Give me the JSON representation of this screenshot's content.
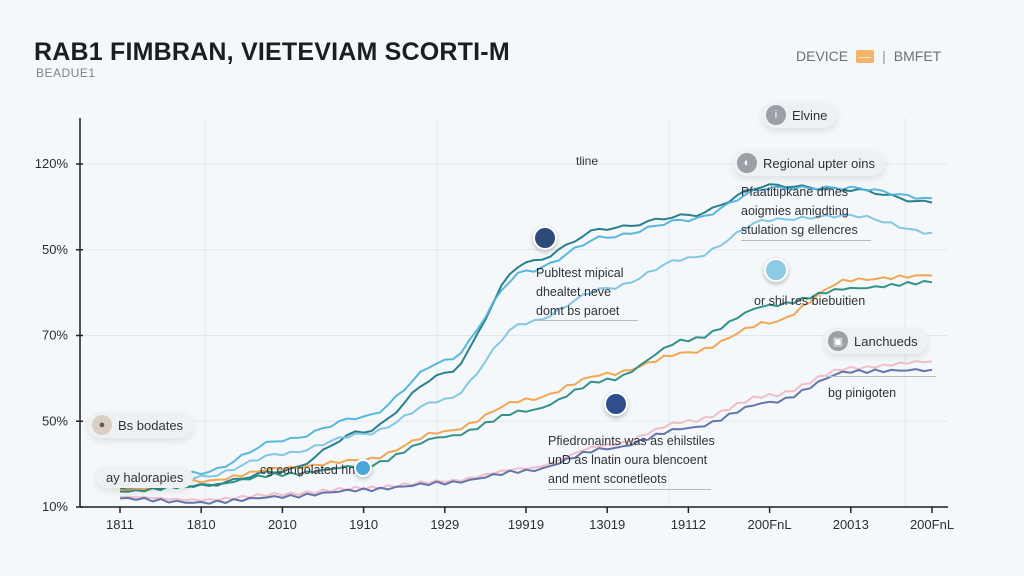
{
  "header": {
    "title": "RAB1 FIMBRAN, VIETEVIAM SCORTI-M",
    "subtitle": "BEADUE1",
    "right_label_1": "DEVICE",
    "right_icon": "mail-icon",
    "right_separator": "|",
    "right_label_2": "BMFET"
  },
  "annotations": {
    "top_pill": "Elvine",
    "tline": "tline",
    "regional": "Regional upter oins",
    "block_right_1": "Pfaatitipkane drnes",
    "block_right_2": "aoigmies amigdting",
    "block_right_3": "stulation sg ellencres",
    "block_mid_1": "Publtest mipical",
    "block_mid_2": "dhealtet neve",
    "block_mid_3": "domt bs paroet",
    "mid_right": "or shil res biebuitien",
    "launched": "Lanchueds",
    "pinigoten": "bg pinigoten",
    "left_pill_1": "Bs bodates",
    "left_pill_2": "ay halorapies",
    "congolated": "cg congolated hn",
    "bottom_block_1": "Pfiedronaints was as ehilstiles",
    "bottom_block_2": "unD as lnatin oura blencoent",
    "bottom_block_3": "and ment sconetleots"
  },
  "chart_data": {
    "type": "line",
    "title": "RAB1 FIMBRAN, VIETEVIAM SCORTI-M",
    "subtitle": "BEADUE1",
    "xlabel": "",
    "ylabel": "",
    "categories": [
      "1811",
      "1810",
      "2010",
      "1910",
      "1929",
      "19919",
      "13019",
      "19112",
      "200FnL",
      "20013",
      "200FnL"
    ],
    "y_tick_labels": [
      "10%",
      "50%",
      "70%",
      "50%",
      "120%"
    ],
    "ylim": [
      0,
      4
    ],
    "grid": true,
    "legend": "none",
    "series": [
      {
        "name": "teal-dark",
        "color": "#1f7a85",
        "values": [
          0.22,
          0.25,
          0.42,
          0.88,
          1.55,
          2.85,
          3.25,
          3.4,
          3.75,
          3.7,
          3.55
        ]
      },
      {
        "name": "sky-blue",
        "color": "#4fb3d9",
        "values": [
          0.28,
          0.4,
          0.78,
          1.05,
          1.7,
          2.75,
          3.15,
          3.35,
          3.72,
          3.72,
          3.6
        ]
      },
      {
        "name": "light-blue",
        "color": "#7cc4e2",
        "values": [
          0.25,
          0.35,
          0.62,
          0.85,
          1.25,
          2.15,
          2.55,
          2.9,
          3.35,
          3.4,
          3.2
        ]
      },
      {
        "name": "orange",
        "color": "#f0a24a",
        "values": [
          0.2,
          0.3,
          0.45,
          0.55,
          0.88,
          1.25,
          1.55,
          1.8,
          2.15,
          2.65,
          2.7
        ]
      },
      {
        "name": "green-teal",
        "color": "#2a8c83",
        "values": [
          0.18,
          0.25,
          0.38,
          0.48,
          0.82,
          1.12,
          1.48,
          1.95,
          2.35,
          2.55,
          2.62
        ]
      },
      {
        "name": "pink",
        "color": "#f0b9c6",
        "values": [
          0.12,
          0.08,
          0.15,
          0.22,
          0.3,
          0.45,
          0.72,
          1.0,
          1.3,
          1.62,
          1.7
        ]
      },
      {
        "name": "slate-blue",
        "color": "#5a6fa8",
        "values": [
          0.1,
          0.05,
          0.12,
          0.2,
          0.28,
          0.42,
          0.68,
          0.92,
          1.22,
          1.58,
          1.6
        ]
      }
    ]
  }
}
